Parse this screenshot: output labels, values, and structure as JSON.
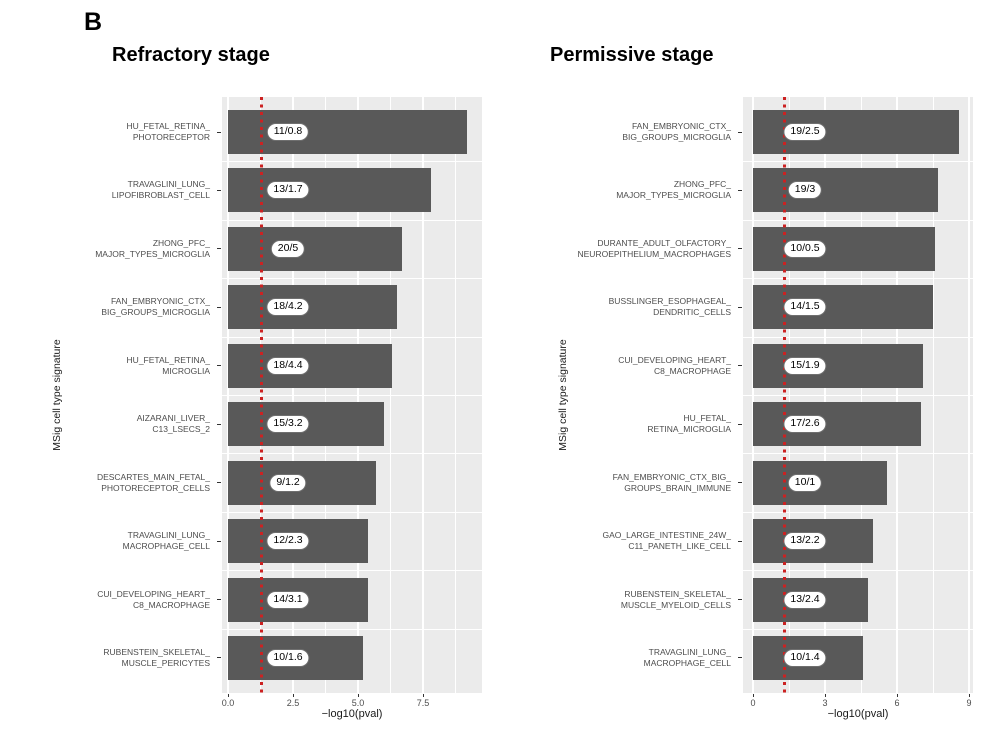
{
  "panel_label": "B",
  "colors": {
    "bar": "#595959",
    "panel_background": "#ebebeb",
    "gridline": "#ffffff",
    "threshold_line": "#cc2222",
    "axis_text": "#4d4d4d",
    "badge_background": "#ffffff",
    "badge_border": "#6f6f6f",
    "badge_text": "#000000",
    "title_text": "#000000"
  },
  "chart_data": [
    {
      "type": "bar",
      "orientation": "horizontal",
      "title": "Refractory stage",
      "xlabel": "−log10(pval)",
      "ylabel": "MSig cell type signature",
      "xlim": [
        0,
        9.8
      ],
      "grid": true,
      "legend": false,
      "x_tick_values": [
        0,
        2.5,
        5,
        7.5
      ],
      "x_tick_labels": [
        "0.0",
        "2.5",
        "5.0",
        "7.5"
      ],
      "x_minor_tick_values": [
        1.25,
        3.75,
        6.25,
        8.75
      ],
      "significance_threshold_x": 1.3,
      "rows": [
        {
          "label_lines": [
            "HU_FETAL_RETINA_",
            "PHOTORECEPTOR"
          ],
          "value": 9.2,
          "bar_label": "11/0.8"
        },
        {
          "label_lines": [
            "TRAVAGLINI_LUNG_",
            "LIPOFIBROBLAST_CELL"
          ],
          "value": 7.8,
          "bar_label": "13/1.7"
        },
        {
          "label_lines": [
            "ZHONG_PFC_",
            "MAJOR_TYPES_MICROGLIA"
          ],
          "value": 6.7,
          "bar_label": "20/5"
        },
        {
          "label_lines": [
            "FAN_EMBRYONIC_CTX_",
            "BIG_GROUPS_MICROGLIA"
          ],
          "value": 6.5,
          "bar_label": "18/4.2"
        },
        {
          "label_lines": [
            "HU_FETAL_RETINA_",
            "MICROGLIA"
          ],
          "value": 6.3,
          "bar_label": "18/4.4"
        },
        {
          "label_lines": [
            "AIZARANI_LIVER_",
            "C13_LSECS_2"
          ],
          "value": 6.0,
          "bar_label": "15/3.2"
        },
        {
          "label_lines": [
            "DESCARTES_MAIN_FETAL_",
            "PHOTORECEPTOR_CELLS"
          ],
          "value": 5.7,
          "bar_label": "9/1.2"
        },
        {
          "label_lines": [
            "TRAVAGLINI_LUNG_",
            "MACROPHAGE_CELL"
          ],
          "value": 5.4,
          "bar_label": "12/2.3"
        },
        {
          "label_lines": [
            "CUI_DEVELOPING_HEART_",
            "C8_MACROPHAGE"
          ],
          "value": 5.4,
          "bar_label": "14/3.1"
        },
        {
          "label_lines": [
            "RUBENSTEIN_SKELETAL_",
            "MUSCLE_PERICYTES"
          ],
          "value": 5.2,
          "bar_label": "10/1.6"
        }
      ]
    },
    {
      "type": "bar",
      "orientation": "horizontal",
      "title": "Permissive stage",
      "xlabel": "−log10(pval)",
      "ylabel": "MSig cell type signature",
      "xlim": [
        0,
        9.2
      ],
      "grid": true,
      "legend": false,
      "x_tick_values": [
        0,
        3,
        6,
        9
      ],
      "x_tick_labels": [
        "0",
        "3",
        "6",
        "9"
      ],
      "x_minor_tick_values": [
        1.5,
        4.5,
        7.5
      ],
      "significance_threshold_x": 1.3,
      "rows": [
        {
          "label_lines": [
            "FAN_EMBRYONIC_CTX_",
            "BIG_GROUPS_MICROGLIA"
          ],
          "value": 8.6,
          "bar_label": "19/2.5"
        },
        {
          "label_lines": [
            "ZHONG_PFC_",
            "MAJOR_TYPES_MICROGLIA"
          ],
          "value": 7.7,
          "bar_label": "19/3"
        },
        {
          "label_lines": [
            "DURANTE_ADULT_OLFACTORY_",
            "NEUROEPITHELIUM_MACROPHAGES"
          ],
          "value": 7.6,
          "bar_label": "10/0.5"
        },
        {
          "label_lines": [
            "BUSSLINGER_ESOPHAGEAL_",
            "DENDRITIC_CELLS"
          ],
          "value": 7.5,
          "bar_label": "14/1.5"
        },
        {
          "label_lines": [
            "CUI_DEVELOPING_HEART_",
            "C8_MACROPHAGE"
          ],
          "value": 7.1,
          "bar_label": "15/1.9"
        },
        {
          "label_lines": [
            "HU_FETAL_",
            "RETINA_MICROGLIA"
          ],
          "value": 7.0,
          "bar_label": "17/2.6"
        },
        {
          "label_lines": [
            "FAN_EMBRYONIC_CTX_BIG_",
            "GROUPS_BRAIN_IMMUNE"
          ],
          "value": 5.6,
          "bar_label": "10/1"
        },
        {
          "label_lines": [
            "GAO_LARGE_INTESTINE_24W_",
            "C11_PANETH_LIKE_CELL"
          ],
          "value": 5.0,
          "bar_label": "13/2.2"
        },
        {
          "label_lines": [
            "RUBENSTEIN_SKELETAL_",
            "MUSCLE_MYELOID_CELLS"
          ],
          "value": 4.8,
          "bar_label": "13/2.4"
        },
        {
          "label_lines": [
            "TRAVAGLINI_LUNG_",
            "MACROPHAGE_CELL"
          ],
          "value": 4.6,
          "bar_label": "10/1.4"
        }
      ]
    }
  ]
}
